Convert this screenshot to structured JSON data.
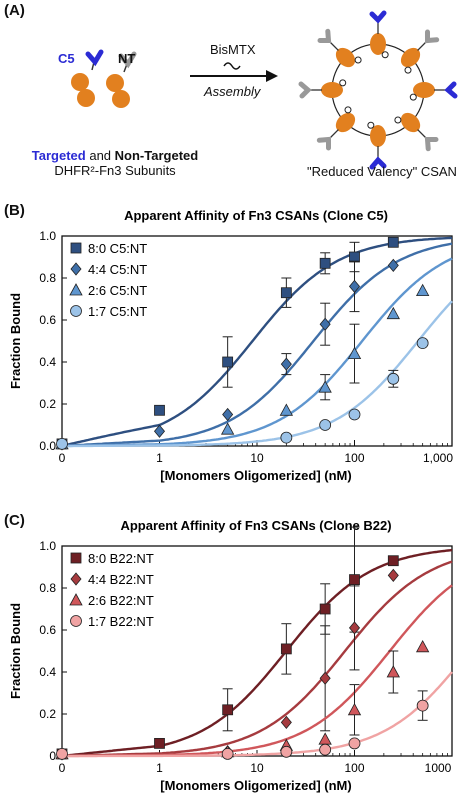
{
  "panel_a": {
    "letter": "(A)",
    "c5_label": "C5",
    "nt_label": "NT",
    "reagent": "BisMTX",
    "process": "Assembly",
    "caption_targeted": "Targeted",
    "caption_and": " and ",
    "caption_nontargeted": "Non-Targeted",
    "caption_line2": "DHFR²-Fn3 Subunits",
    "csan_caption": "\"Reduced Valency\" CSAN",
    "colors": {
      "targeted": "#2b2bd4",
      "nontargeted": "#999999",
      "subunit": "#e2801f"
    }
  },
  "chart_data": [
    {
      "panel": "(B)",
      "type": "scatter",
      "title": "Apparent Affinity of Fn3 CSANs (Clone C5)",
      "xlabel": "[Monomers Oligomerized] (nM)",
      "ylabel": "Fraction Bound",
      "xscale": "log",
      "xtick_labels": [
        "0",
        "1",
        "10",
        "100",
        "1,000"
      ],
      "ytick_labels": [
        "0.0",
        "0.2",
        "0.4",
        "0.6",
        "0.8",
        "1.0"
      ],
      "xlim": [
        0,
        1000
      ],
      "ylim": [
        0,
        1.0
      ],
      "legend_position": "top-left",
      "series": [
        {
          "name": "8:0 C5:NT",
          "marker": "square",
          "color": "#2e4f80",
          "x": [
            0,
            1,
            5,
            20,
            50,
            100,
            250
          ],
          "y": [
            0.01,
            0.17,
            0.4,
            0.73,
            0.87,
            0.9,
            0.97
          ],
          "err": [
            0,
            0,
            0.12,
            0.07,
            0.05,
            0.07,
            0
          ],
          "fit_kd": 9,
          "fit_max": 1.0
        },
        {
          "name": "4:4 C5:NT",
          "marker": "diamond",
          "color": "#3f6fa8",
          "x": [
            0,
            1,
            5,
            20,
            50,
            100,
            250
          ],
          "y": [
            0.01,
            0.07,
            0.15,
            0.39,
            0.58,
            0.76,
            0.86
          ],
          "err": [
            0,
            0,
            0,
            0.05,
            0.1,
            0.12,
            0
          ],
          "fit_kd": 38,
          "fit_max": 1.0
        },
        {
          "name": "2:6 C5:NT",
          "marker": "triangle",
          "color": "#5f96cf",
          "x": [
            0,
            5,
            20,
            50,
            100,
            250,
            500
          ],
          "y": [
            0.01,
            0.08,
            0.17,
            0.28,
            0.44,
            0.63,
            0.74
          ],
          "err": [
            0,
            0,
            0,
            0.06,
            0.14,
            0,
            0
          ],
          "fit_kd": 120,
          "fit_max": 1.0
        },
        {
          "name": "1:7 C5:NT",
          "marker": "circle",
          "color": "#9cc3e8",
          "x": [
            0,
            20,
            50,
            100,
            250,
            500
          ],
          "y": [
            0.01,
            0.04,
            0.1,
            0.15,
            0.32,
            0.49
          ],
          "err": [
            0,
            0,
            0,
            0,
            0.04,
            0
          ],
          "fit_kd": 450,
          "fit_max": 1.0
        }
      ]
    },
    {
      "panel": "(C)",
      "type": "scatter",
      "title": "Apparent Affinity of Fn3 CSANs (Clone B22)",
      "xlabel": "[Monomers Oligomerized] (nM)",
      "ylabel": "Fraction Bound",
      "xscale": "log",
      "xtick_labels": [
        "0",
        "1",
        "10",
        "100",
        "1000"
      ],
      "ytick_labels": [
        "0",
        "0.2",
        "0.4",
        "0.6",
        "0.8",
        "1.0"
      ],
      "xlim": [
        0,
        1000
      ],
      "ylim": [
        0,
        1.0
      ],
      "legend_position": "top-left",
      "series": [
        {
          "name": "8:0 B22:NT",
          "marker": "square",
          "color": "#6e1f24",
          "x": [
            0,
            1,
            5,
            20,
            50,
            100,
            250
          ],
          "y": [
            0.01,
            0.06,
            0.22,
            0.51,
            0.7,
            0.84,
            0.93
          ],
          "err": [
            0,
            0,
            0.1,
            0.12,
            0.12,
            0.25,
            0
          ],
          "fit_kd": 20,
          "fit_max": 1.0
        },
        {
          "name": "4:4 B22:NT",
          "marker": "diamond",
          "color": "#a63b3f",
          "x": [
            0,
            5,
            20,
            50,
            100,
            250
          ],
          "y": [
            0.01,
            0.02,
            0.16,
            0.37,
            0.61,
            0.86
          ],
          "err": [
            0,
            0,
            0,
            0.25,
            0.2,
            0
          ],
          "fit_kd": 80,
          "fit_max": 1.0
        },
        {
          "name": "2:6 B22:NT",
          "marker": "triangle",
          "color": "#d0575b",
          "x": [
            0,
            5,
            20,
            50,
            100,
            250,
            500
          ],
          "y": [
            0.01,
            0.02,
            0.05,
            0.08,
            0.22,
            0.4,
            0.52
          ],
          "err": [
            0,
            0,
            0,
            0,
            0.12,
            0.1,
            0
          ],
          "fit_kd": 230,
          "fit_max": 1.0
        },
        {
          "name": "1:7 B22:NT",
          "marker": "circle",
          "color": "#f0a3a3",
          "x": [
            0,
            5,
            20,
            50,
            100,
            500
          ],
          "y": [
            0.01,
            0.01,
            0.02,
            0.03,
            0.06,
            0.24
          ],
          "err": [
            0,
            0,
            0,
            0,
            0,
            0.07
          ],
          "fit_kd": 1500,
          "fit_max": 1.0
        }
      ]
    }
  ]
}
